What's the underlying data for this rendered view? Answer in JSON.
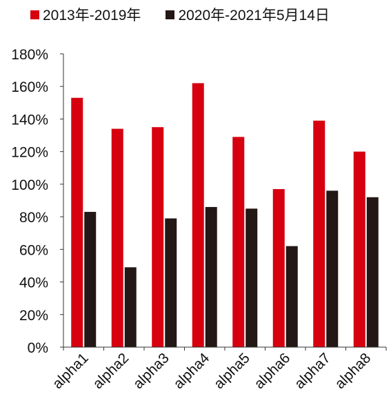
{
  "chart_data": {
    "type": "bar",
    "categories": [
      "alpha1",
      "alpha2",
      "alpha3",
      "alpha4",
      "alpha5",
      "alpha6",
      "alpha7",
      "alpha8"
    ],
    "series": [
      {
        "name": "2013年-2019年",
        "color": "#d6000f",
        "values": [
          153,
          134,
          135,
          162,
          129,
          97,
          139,
          120
        ]
      },
      {
        "name": "2020年-2021年5月14日",
        "color": "#231815",
        "values": [
          83,
          49,
          79,
          86,
          85,
          62,
          96,
          92
        ]
      }
    ],
    "ylim": [
      0,
      180
    ],
    "yticks": [
      "0%",
      "20%",
      "40%",
      "60%",
      "80%",
      "100%",
      "120%",
      "140%",
      "160%",
      "180%"
    ],
    "legend": "top",
    "grid": false
  }
}
